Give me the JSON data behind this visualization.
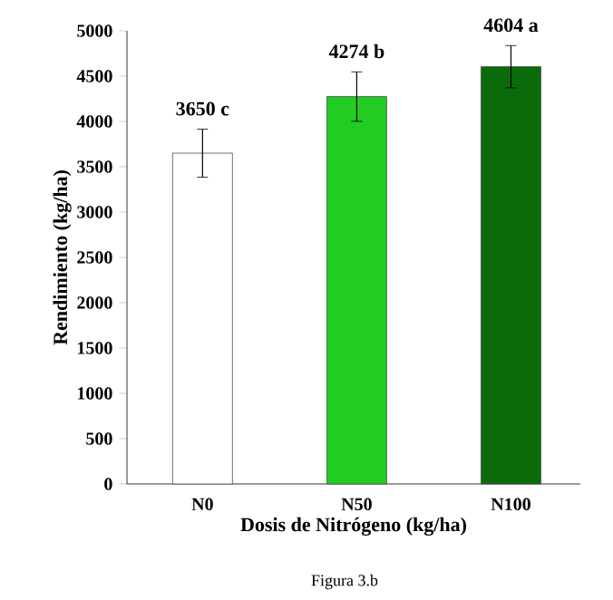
{
  "chart_data": {
    "type": "bar",
    "xlabel": "Dosis de Nitrógeno (kg/ha)",
    "ylabel": "Rendimiento (kg/ha)",
    "categories": [
      "N0",
      "N50",
      "N100"
    ],
    "values": [
      3650,
      4274,
      4604
    ],
    "colors": [
      "#ffffff",
      "#22cc22",
      "#0b6b0b"
    ],
    "errors": [
      265,
      273,
      233
    ],
    "value_labels": [
      "3650 c",
      "4274 b",
      "4604 a"
    ],
    "ylim": [
      0,
      5000
    ],
    "yticks": [
      0,
      500,
      1000,
      1500,
      2000,
      2500,
      3000,
      3500,
      4000,
      4500,
      5000
    ],
    "grid": false,
    "annotations": [
      "Figura 3.b"
    ]
  }
}
